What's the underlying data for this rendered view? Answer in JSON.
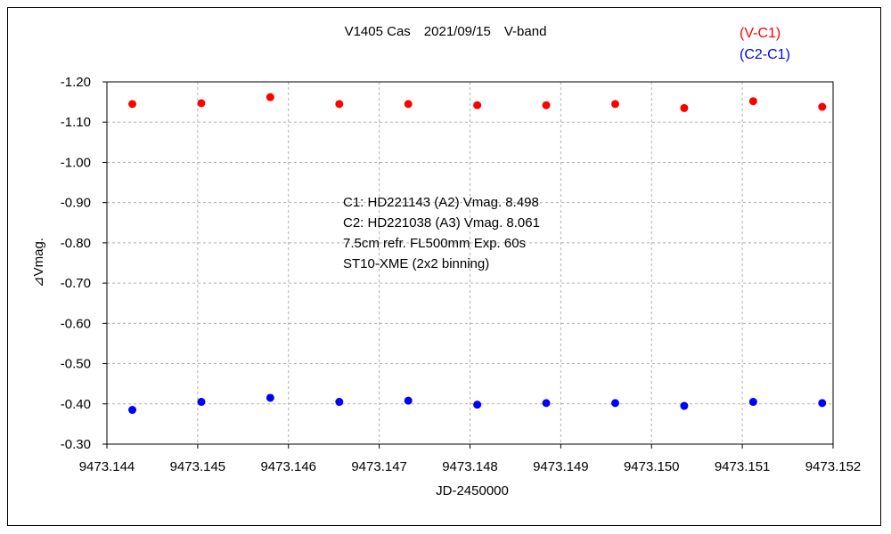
{
  "chart_data": {
    "type": "scatter",
    "title": "V1405 Cas　2021/09/15　V-band",
    "xlabel": "JD-2450000",
    "ylabel": "⊿Vmag.",
    "xlim": [
      9473.144,
      9473.152
    ],
    "ylim": [
      -0.3,
      -1.2
    ],
    "y_inverted": true,
    "grid": true,
    "x_ticks": [
      "9473.144",
      "9473.145",
      "9473.146",
      "9473.147",
      "9473.148",
      "9473.149",
      "9473.150",
      "9473.151",
      "9473.152"
    ],
    "y_ticks": [
      "-1.20",
      "-1.10",
      "-1.00",
      "-0.90",
      "-0.80",
      "-0.70",
      "-0.60",
      "-0.50",
      "-0.40",
      "-0.30"
    ],
    "legend_position": "top-right",
    "series": [
      {
        "name": "(V-C1)",
        "color": "#ff0000",
        "x": [
          9473.14428,
          9473.14504,
          9473.1458,
          9473.14656,
          9473.14732,
          9473.14808,
          9473.14884,
          9473.1496,
          9473.15036,
          9473.15112,
          9473.15188
        ],
        "y": [
          -1.145,
          -1.147,
          -1.162,
          -1.145,
          -1.145,
          -1.142,
          -1.142,
          -1.145,
          -1.135,
          -1.152,
          -1.138
        ]
      },
      {
        "name": "(C2-C1)",
        "color": "#0000ff",
        "x": [
          9473.14428,
          9473.14504,
          9473.1458,
          9473.14656,
          9473.14732,
          9473.14808,
          9473.14884,
          9473.1496,
          9473.15036,
          9473.15112,
          9473.15188
        ],
        "y": [
          -0.385,
          -0.405,
          -0.415,
          -0.405,
          -0.408,
          -0.398,
          -0.402,
          -0.402,
          -0.395,
          -0.405,
          -0.402
        ]
      }
    ],
    "annotation": [
      "C1: HD221143 (A2) Vmag. 8.498",
      "C2: HD221038 (A3) Vmag. 8.061",
      "7.5cm refr. FL500mm Exp. 60s",
      "ST10-XME (2x2 binning)"
    ]
  }
}
